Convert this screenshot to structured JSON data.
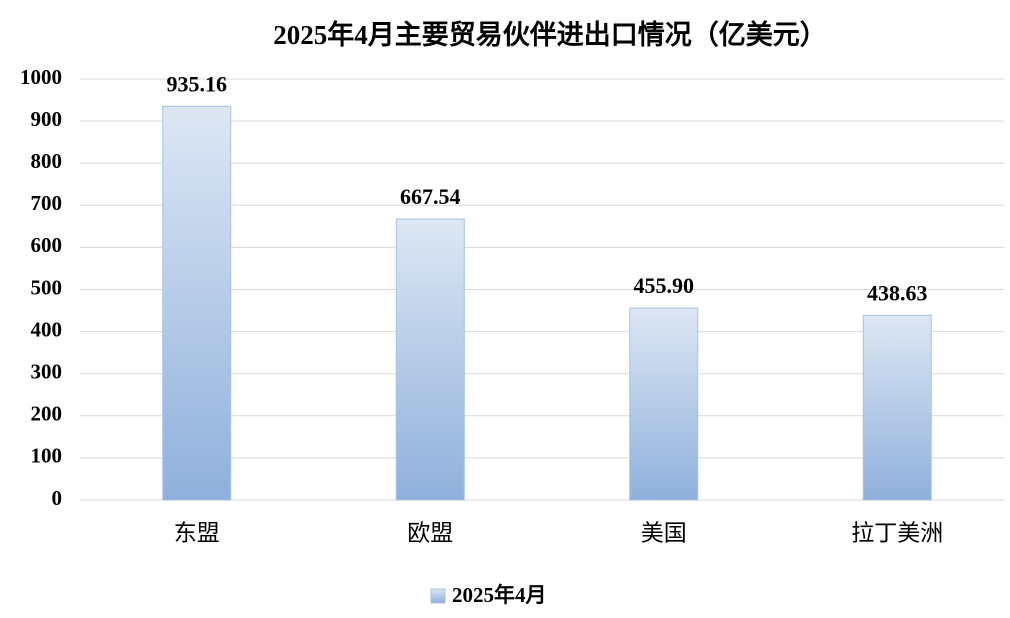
{
  "chart_data": {
    "type": "bar",
    "title": "2025年4月主要贸易伙伴进出口情况（亿美元）",
    "categories": [
      "东盟",
      "欧盟",
      "美国",
      "拉丁美洲"
    ],
    "series": [
      {
        "name": "2025年4月",
        "color": "#8fb0dc",
        "values": [
          935.16,
          667.54,
          455.9,
          438.63
        ],
        "value_labels": [
          "935.16",
          "667.54",
          "455.90",
          "438.63"
        ]
      }
    ],
    "ylim": [
      0,
      1000
    ],
    "yticks": [
      0,
      100,
      200,
      300,
      400,
      500,
      600,
      700,
      800,
      900,
      1000
    ],
    "grid": true,
    "legend": "bottom"
  }
}
